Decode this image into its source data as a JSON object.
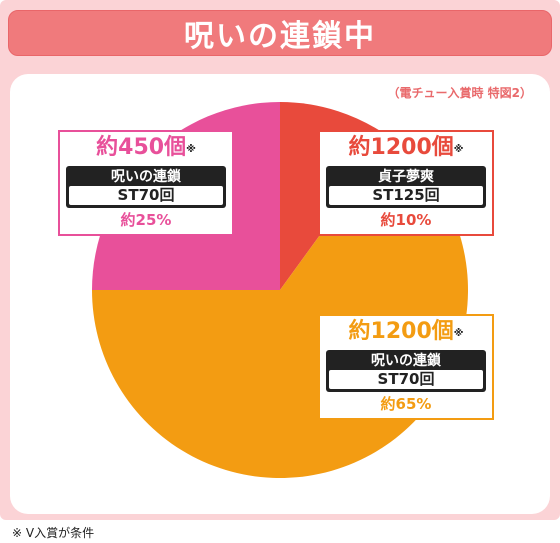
{
  "title": "呪いの連鎖中",
  "note_top": "（電チュー入賞時 特図2）",
  "footnote": "※ V入賞が条件",
  "chart_data": {
    "type": "pie",
    "title": "呪いの連鎖中",
    "slices": [
      {
        "mode": "貞子夢爽",
        "st": "ST125回",
        "amount": "約1200個",
        "mark": "※",
        "percent_label": "約10%",
        "value": 10,
        "color": "#e84a3c"
      },
      {
        "mode": "呪いの連鎖",
        "st": "ST70回",
        "amount": "約1200個",
        "mark": "※",
        "percent_label": "約65%",
        "value": 65,
        "color": "#f39c12"
      },
      {
        "mode": "呪いの連鎖",
        "st": "ST70回",
        "amount": "約450個",
        "mark": "※",
        "percent_label": "約25%",
        "value": 25,
        "color": "#e8509a"
      }
    ]
  },
  "colors": {
    "frame": "#fbd3d6",
    "title_bar": "#f07a7c",
    "note": "#e96a6c"
  }
}
